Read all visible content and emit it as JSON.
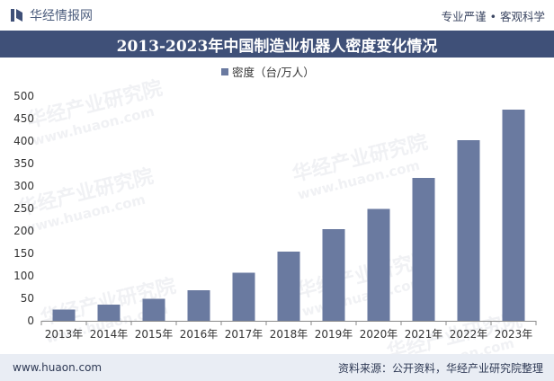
{
  "header": {
    "brand_name": "华经情报网",
    "slogan": "专业严谨 • 客观科学"
  },
  "title": "2013-2023年中国制造业机器人密度变化情况",
  "watermark": {
    "cn": "华经产业研究院",
    "en": "www.huaon.com"
  },
  "footer": {
    "website": "www.huaon.com",
    "source": "资料来源：公开资料，华经产业研究院整理"
  },
  "colors": {
    "bar": "#6a7aa0",
    "title_bg": "#3f5078",
    "footer_bg": "#e9edf4"
  },
  "chart_data": {
    "type": "bar",
    "title": "2013-2023年中国制造业机器人密度变化情况",
    "legend": [
      "密度（台/万人）"
    ],
    "legend_position": "top-center",
    "categories": [
      "2013年",
      "2014年",
      "2015年",
      "2016年",
      "2017年",
      "2018年",
      "2019年",
      "2020年",
      "2021年",
      "2022年",
      "2023年"
    ],
    "series": [
      {
        "name": "密度（台/万人）",
        "values": [
          25,
          36,
          49,
          68,
          107,
          154,
          204,
          249,
          318,
          402,
          470
        ]
      }
    ],
    "yticks": [
      0,
      50,
      100,
      150,
      200,
      250,
      300,
      350,
      400,
      450,
      500
    ],
    "ylim": [
      0,
      500
    ],
    "xlabel": "",
    "ylabel": "",
    "grid": false
  }
}
